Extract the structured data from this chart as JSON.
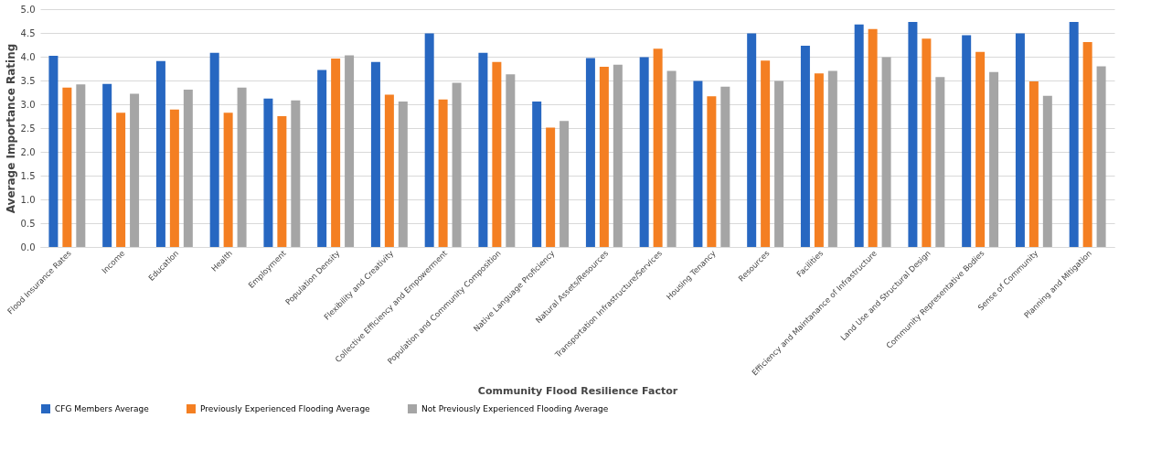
{
  "chart_data": {
    "type": "bar",
    "xlabel": "Community Flood Resilience Factor",
    "ylabel": "Average Importance Rating",
    "categories": [
      "Flood Insurance Rates",
      "Income",
      "Education",
      "Health",
      "Employment",
      "Population Density",
      "Flexibility and Creativity",
      "Collective Efficiency and Empowerment",
      "Population and Community Composition",
      "Native Language Proficiency",
      "Natural Assets/Resources",
      "Transportation Infrastructure/Services",
      "Housing Tenancy",
      "Resources",
      "Facilities",
      "Efficiency and Maintanance of Infrastructure",
      "Land Use and Structural Design",
      "Community Representative Bodies",
      "Sense of Community",
      "Planning and Mitigation"
    ],
    "series": [
      {
        "name": "CFG Members Average",
        "color": "#2767c1",
        "values": [
          4.02,
          3.43,
          3.91,
          4.08,
          3.12,
          3.72,
          3.89,
          4.49,
          4.08,
          3.06,
          3.97,
          3.99,
          3.49,
          4.49,
          4.23,
          4.68,
          4.73,
          4.45,
          4.49,
          4.73
        ]
      },
      {
        "name": "Previously Experienced Flooding Average",
        "color": "#f47f22",
        "values": [
          3.35,
          2.82,
          2.89,
          2.82,
          2.75,
          3.96,
          3.2,
          3.1,
          3.89,
          2.51,
          3.79,
          4.17,
          3.17,
          3.92,
          3.65,
          4.58,
          4.38,
          4.1,
          3.48,
          4.31
        ]
      },
      {
        "name": "Not Previously Experienced Flooding Average",
        "color": "#a5a5a5",
        "values": [
          3.42,
          3.22,
          3.31,
          3.35,
          3.08,
          4.03,
          3.06,
          3.45,
          3.63,
          2.65,
          3.83,
          3.7,
          3.37,
          3.49,
          3.7,
          3.99,
          3.57,
          3.68,
          3.18,
          3.8
        ]
      }
    ],
    "ylim": [
      0,
      5
    ],
    "yticks": [
      {
        "value": 0,
        "label": "0.0"
      },
      0.5,
      {
        "value": 1,
        "label": "1.0"
      },
      1.5,
      {
        "value": 2,
        "label": "2.0"
      },
      2.5,
      {
        "value": 3,
        "label": "3.0"
      },
      3.5,
      {
        "value": 4,
        "label": "4.0"
      },
      4.5,
      {
        "value": 5,
        "label": "5.0"
      }
    ],
    "grid": "y",
    "legend": "bottom"
  }
}
